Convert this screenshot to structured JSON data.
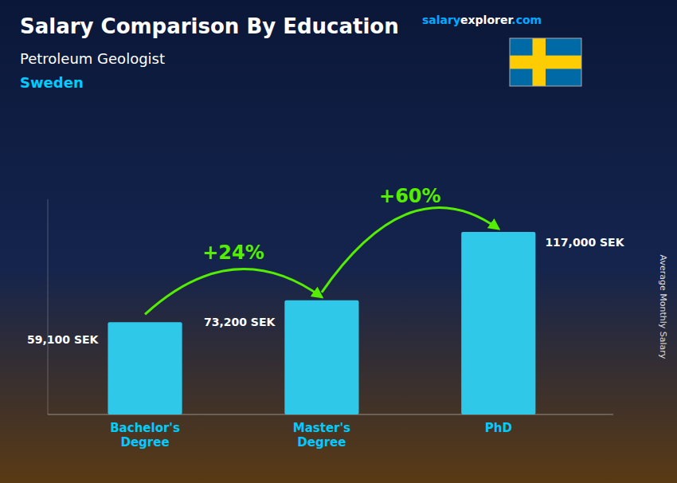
{
  "chart_data": {
    "type": "bar",
    "title": "Salary Comparison By Education",
    "subtitle": "Petroleum Geologist",
    "ylabel": "Average Monthly Salary",
    "annotations": [
      "Sweden",
      "salary",
      "explorer",
      ".com",
      "+24%",
      "+60%"
    ],
    "categories": [
      "Bachelor's\nDegree",
      "Master's\nDegree",
      "PhD"
    ],
    "values": [
      59100,
      73200,
      117000
    ],
    "value_labels": [
      "59,100 SEK",
      "73,200 SEK",
      "117,000 SEK"
    ],
    "data_labels": true,
    "color": "#30c8e8",
    "ylim": [
      0,
      138000
    ],
    "tick_labels": "x",
    "grid": false
  }
}
